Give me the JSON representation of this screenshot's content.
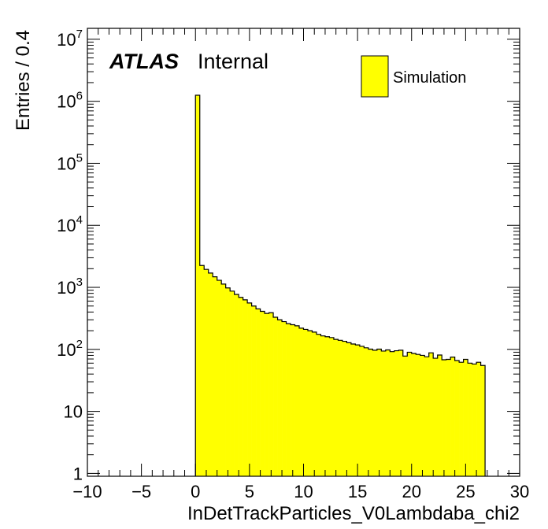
{
  "chart_data": {
    "type": "histogram",
    "xlabel": "InDetTrackParticles_V0Lambdaba_chi2",
    "ylabel": "Entries / 0.4",
    "yscale": "log",
    "xlim": [
      -10,
      30
    ],
    "ylim": [
      0.9,
      15000000
    ],
    "bin_width": 0.4,
    "bin_start": 0,
    "x_ticks": [
      -10,
      -5,
      0,
      5,
      10,
      15,
      20,
      25,
      30
    ],
    "x_tick_labels": [
      "−10",
      "−5",
      "0",
      "5",
      "10",
      "15",
      "20",
      "25",
      "30"
    ],
    "y_ticks": [
      {
        "value": 1,
        "base": "1",
        "exp": ""
      },
      {
        "value": 10,
        "base": "10",
        "exp": ""
      },
      {
        "value": 100,
        "base": "10",
        "exp": "2"
      },
      {
        "value": 1000,
        "base": "10",
        "exp": "3"
      },
      {
        "value": 10000,
        "base": "10",
        "exp": "4"
      },
      {
        "value": 100000,
        "base": "10",
        "exp": "5"
      },
      {
        "value": 1000000,
        "base": "10",
        "exp": "6"
      },
      {
        "value": 10000000,
        "base": "10",
        "exp": "7"
      }
    ],
    "fill_color": "#ffff00",
    "line_color": "#000000",
    "atlas_label": "ATLAS",
    "atlas_status": "Internal",
    "legend": {
      "label": "Simulation",
      "placement": "top-right"
    },
    "values": [
      1250000,
      2250,
      1950,
      1700,
      1480,
      1300,
      1130,
      980,
      870,
      770,
      690,
      630,
      560,
      500,
      450,
      410,
      380,
      390,
      330,
      300,
      280,
      260,
      250,
      240,
      220,
      210,
      200,
      190,
      175,
      165,
      160,
      155,
      145,
      140,
      135,
      128,
      122,
      118,
      112,
      106,
      101,
      97,
      101,
      94,
      98,
      92,
      95,
      97,
      78,
      90,
      86,
      83,
      80,
      76,
      88,
      72,
      81,
      68,
      69,
      75,
      66,
      62,
      69,
      60,
      58,
      62,
      55
    ]
  }
}
